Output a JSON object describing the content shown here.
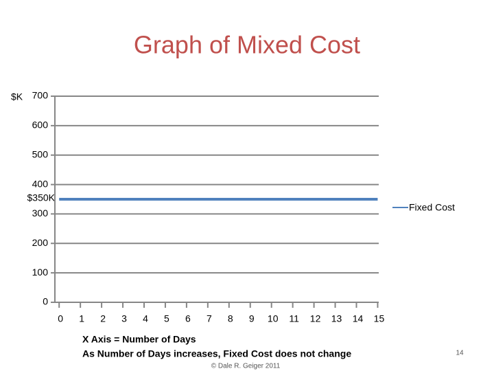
{
  "chart_data": {
    "type": "line",
    "title": "Graph of Mixed Cost",
    "y_label": "$K",
    "x": [
      0,
      1,
      2,
      3,
      4,
      5,
      6,
      7,
      8,
      9,
      10,
      11,
      12,
      13,
      14,
      15
    ],
    "series": [
      {
        "name": "Fixed Cost",
        "color": "#4f81bd",
        "values": [
          350,
          350,
          350,
          350,
          350,
          350,
          350,
          350,
          350,
          350,
          350,
          350,
          350,
          350,
          350,
          350
        ]
      }
    ],
    "xlim": [
      -0.2,
      15.05
    ],
    "xticks": [
      0,
      1,
      2,
      3,
      4,
      5,
      6,
      7,
      8,
      9,
      10,
      11,
      12,
      13,
      14,
      15
    ],
    "ylim": [
      0,
      700
    ],
    "yticks": [
      0,
      100,
      200,
      300,
      400,
      500,
      600,
      700
    ],
    "grid": true,
    "legend": "right",
    "annotations": [
      "$350K"
    ],
    "notes": [
      "X Axis = Number of Days",
      "As Number of Days increases, Fixed Cost does not change"
    ],
    "footer": "© Dale R. Geiger 2011",
    "page_number": "14"
  }
}
